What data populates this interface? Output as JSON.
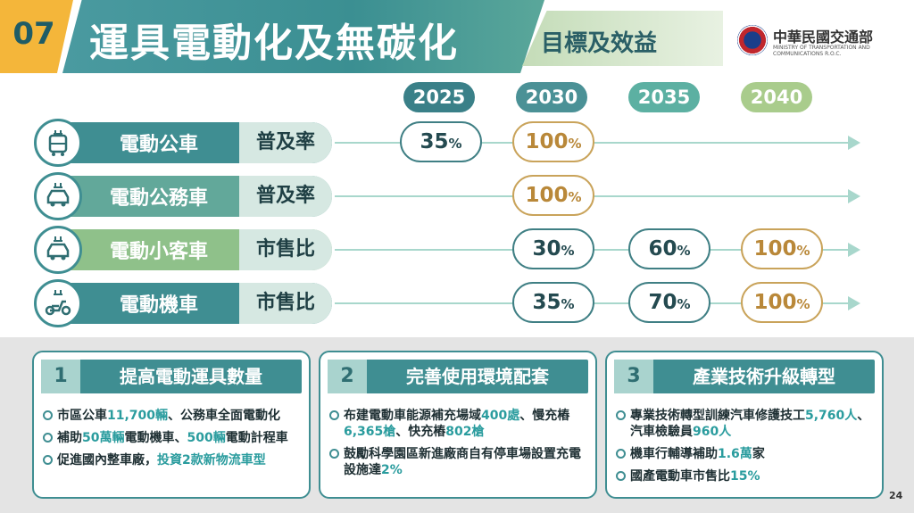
{
  "header": {
    "number": "07",
    "title": "運具電動化及無碳化",
    "subtitle": "目標及效益",
    "org_cn": "中華民國交通部",
    "org_en": "MINISTRY OF TRANSPORTATION AND COMMUNICATIONS R.O.C."
  },
  "years": [
    {
      "label": "2025",
      "color": "#3a8088"
    },
    {
      "label": "2030",
      "color": "#4b9196"
    },
    {
      "label": "2035",
      "color": "#5cb0a2"
    },
    {
      "label": "2040",
      "color": "#a9cc8c"
    }
  ],
  "rows": [
    {
      "label": "電動公車",
      "metric": "普及率",
      "icon": "electric-bus-icon",
      "values": [
        {
          "num": "35",
          "unit": "%"
        },
        {
          "num": "100",
          "unit": "%"
        },
        null,
        null
      ]
    },
    {
      "label": "電動公務車",
      "metric": "普及率",
      "icon": "electric-car-icon",
      "values": [
        null,
        {
          "num": "100",
          "unit": "%"
        },
        null,
        null
      ]
    },
    {
      "label": "電動小客車",
      "metric": "市售比",
      "icon": "electric-car-icon",
      "values": [
        null,
        {
          "num": "30",
          "unit": "%"
        },
        {
          "num": "60",
          "unit": "%"
        },
        {
          "num": "100",
          "unit": "%"
        }
      ]
    },
    {
      "label": "電動機車",
      "metric": "市售比",
      "icon": "electric-scooter-icon",
      "values": [
        null,
        {
          "num": "35",
          "unit": "%"
        },
        {
          "num": "70",
          "unit": "%"
        },
        {
          "num": "100",
          "unit": "%"
        }
      ]
    }
  ],
  "cards": [
    {
      "num": "1",
      "title": "提高電動運具數量",
      "items": [
        [
          {
            "t": "市區公車"
          },
          {
            "t": "11,700輛",
            "hl": true
          },
          {
            "t": "、公務車全面電動化"
          }
        ],
        [
          {
            "t": "補助"
          },
          {
            "t": "50萬輛",
            "hl": true
          },
          {
            "t": "電動機車、"
          },
          {
            "t": "500輛",
            "hl": true
          },
          {
            "t": "電動計程車"
          }
        ],
        [
          {
            "t": "促進國內整車廠，"
          },
          {
            "t": "投資2款新物流車型",
            "hl": true
          }
        ]
      ]
    },
    {
      "num": "2",
      "title": "完善使用環境配套",
      "items": [
        [
          {
            "t": "布建電動車能源補充場域"
          },
          {
            "t": "400處",
            "hl": true
          },
          {
            "t": "、慢充樁"
          },
          {
            "t": "6,365槍",
            "hl": true
          },
          {
            "t": "、快充樁"
          },
          {
            "t": "802槍",
            "hl": true
          }
        ],
        [
          {
            "t": "鼓勵科學園區新進廠商自有停車場設置充電設施達"
          },
          {
            "t": "2%",
            "hl": true
          }
        ]
      ]
    },
    {
      "num": "3",
      "title": "產業技術升級轉型",
      "items": [
        [
          {
            "t": "專業技術轉型訓練汽車修護技工"
          },
          {
            "t": "5,760人",
            "hl": true
          },
          {
            "t": "、汽車檢驗員"
          },
          {
            "t": "960人",
            "hl": true
          }
        ],
        [
          {
            "t": "機車行輔導補助"
          },
          {
            "t": "1.6萬",
            "hl": true
          },
          {
            "t": "家"
          }
        ],
        [
          {
            "t": "國產電動車市售比"
          },
          {
            "t": "15%",
            "hl": true
          }
        ]
      ]
    }
  ],
  "page_number": "24"
}
